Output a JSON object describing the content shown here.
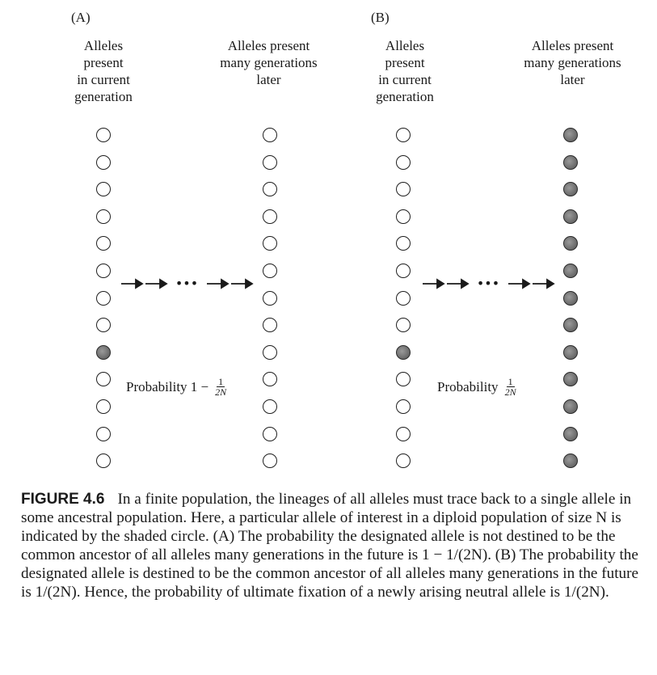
{
  "panels": {
    "a": {
      "label": "(A)",
      "left_heading": "Alleles\npresent\nin current\ngeneration",
      "right_heading": "Alleles present\nmany generations\nlater",
      "left_shaded": [
        false,
        false,
        false,
        false,
        false,
        false,
        false,
        false,
        true,
        false,
        false,
        false,
        false
      ],
      "right_shaded": [
        false,
        false,
        false,
        false,
        false,
        false,
        false,
        false,
        false,
        false,
        false,
        false,
        false
      ],
      "arrow_ellipsis": "•••",
      "probability_label": "Probability 1 −",
      "probability_num": "1",
      "probability_den": "2N"
    },
    "b": {
      "label": "(B)",
      "left_heading": "Alleles\npresent\nin current\ngeneration",
      "right_heading": "Alleles present\nmany generations\nlater",
      "left_shaded": [
        false,
        false,
        false,
        false,
        false,
        false,
        false,
        false,
        true,
        false,
        false,
        false,
        false
      ],
      "right_shaded": [
        true,
        true,
        true,
        true,
        true,
        true,
        true,
        true,
        true,
        true,
        true,
        true,
        true
      ],
      "arrow_ellipsis": "•••",
      "probability_label": "Probability",
      "probability_num": "1",
      "probability_den": "2N"
    }
  },
  "caption": {
    "figure_label": "FIGURE 4.6",
    "text": "In a finite population, the lineages of all alleles must trace back to a single allele in some ancestral population. Here, a particular allele of interest in a diploid population of size N is indicated by the shaded circle. (A) The probability the designated allele is not destined to be the common ancestor of all alleles many generations in the future is 1 − 1/(2N). (B) The probability the designated allele is destined to be the common ancestor of all alleles many generations in the future is 1/(2N). Hence, the probability of ultimate fixation of a newly arising neutral allele is 1/(2N)."
  }
}
